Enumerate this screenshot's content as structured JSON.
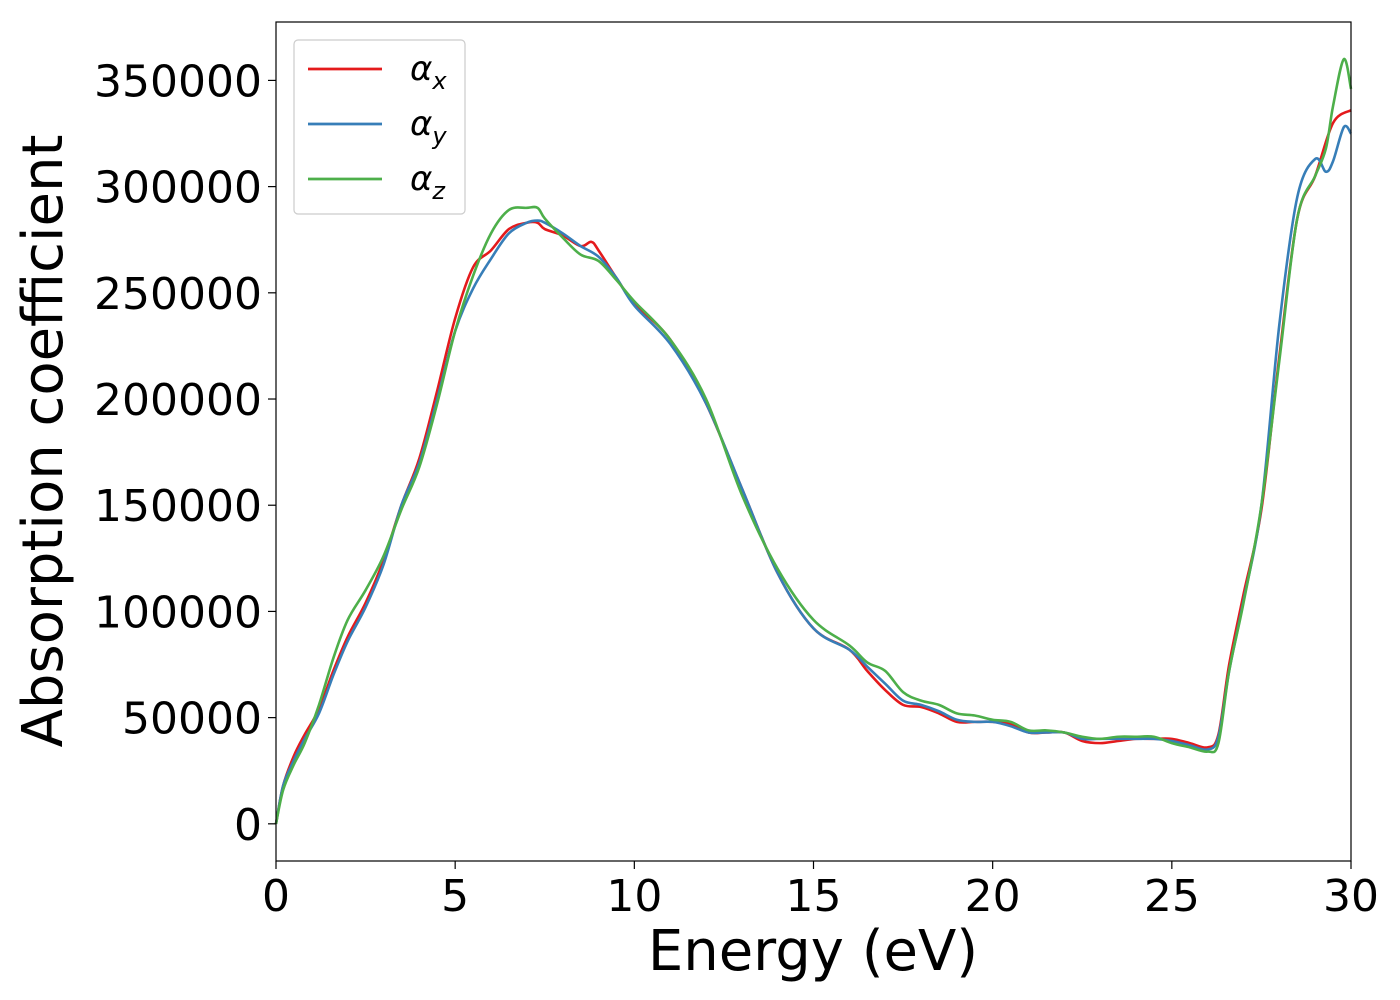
{
  "chart_data": {
    "type": "line",
    "xlabel": "Energy (eV)",
    "ylabel": "Absorption coefficient",
    "xlim": [
      0,
      30
    ],
    "ylim": [
      -17500,
      377500
    ],
    "xticks": [
      0,
      5,
      10,
      15,
      20,
      25,
      30
    ],
    "yticks": [
      0,
      50000,
      100000,
      150000,
      200000,
      250000,
      300000,
      350000
    ],
    "grid": false,
    "legend_position": "top-left",
    "series": [
      {
        "name": "α_x",
        "legend_main": "α",
        "legend_sub": "x",
        "color": "#e41a1c",
        "x": [
          0,
          0.2,
          0.5,
          0.8,
          1.2,
          1.6,
          2.0,
          2.5,
          3.0,
          3.5,
          4.0,
          4.5,
          5.0,
          5.5,
          6.0,
          6.5,
          7.0,
          7.3,
          7.5,
          8.0,
          8.5,
          8.8,
          9.0,
          9.5,
          10.0,
          11.0,
          12.0,
          13.0,
          14.0,
          15.0,
          16.0,
          16.5,
          17.0,
          17.5,
          18.0,
          18.5,
          19.0,
          19.5,
          20.0,
          20.5,
          21.0,
          21.5,
          22.0,
          22.5,
          23.0,
          23.5,
          24.0,
          24.5,
          25.0,
          25.5,
          26.0,
          26.3,
          26.6,
          27.0,
          27.5,
          28.0,
          28.5,
          29.0,
          29.5,
          30.0
        ],
        "y": [
          0,
          18000,
          32000,
          42000,
          54000,
          72000,
          88000,
          104000,
          124000,
          150000,
          172000,
          204000,
          238000,
          262000,
          270000,
          280000,
          283000,
          283000,
          280000,
          277000,
          272000,
          274000,
          270000,
          257000,
          245000,
          228000,
          198000,
          158000,
          118000,
          92000,
          82000,
          72000,
          63000,
          56000,
          55000,
          52000,
          48000,
          48000,
          48000,
          47000,
          43000,
          43000,
          43000,
          39000,
          38000,
          39000,
          40000,
          40000,
          40000,
          38000,
          36000,
          42000,
          75000,
          108000,
          148000,
          220000,
          285000,
          305000,
          330000,
          336000
        ]
      },
      {
        "name": "α_y",
        "legend_main": "α",
        "legend_sub": "y",
        "color": "#377eb8",
        "x": [
          0,
          0.2,
          0.5,
          0.8,
          1.2,
          1.6,
          2.0,
          2.5,
          3.0,
          3.5,
          4.0,
          4.5,
          5.0,
          5.5,
          6.0,
          6.5,
          7.0,
          7.3,
          7.5,
          8.0,
          8.5,
          9.0,
          9.5,
          10.0,
          11.0,
          12.0,
          13.0,
          14.0,
          15.0,
          16.0,
          16.5,
          17.0,
          17.5,
          18.0,
          18.5,
          19.0,
          19.5,
          20.0,
          20.5,
          21.0,
          21.5,
          22.0,
          22.5,
          23.0,
          23.5,
          24.0,
          24.5,
          25.0,
          25.5,
          26.0,
          26.3,
          26.6,
          27.0,
          27.5,
          28.0,
          28.5,
          29.0,
          29.3,
          29.5,
          29.8,
          30.0
        ],
        "y": [
          0,
          18000,
          30000,
          40000,
          52000,
          70000,
          86000,
          102000,
          122000,
          150000,
          170000,
          200000,
          232000,
          252000,
          266000,
          278000,
          283000,
          284000,
          283000,
          278000,
          272000,
          267000,
          257000,
          244000,
          226000,
          198000,
          158000,
          118000,
          92000,
          82000,
          74000,
          66000,
          58000,
          56000,
          53000,
          49000,
          48000,
          48000,
          46000,
          43000,
          43000,
          43000,
          40000,
          40000,
          40000,
          40000,
          40000,
          39000,
          37000,
          35000,
          41000,
          72000,
          105000,
          150000,
          235000,
          295000,
          313000,
          307000,
          312000,
          328000,
          325000
        ]
      },
      {
        "name": "α_z",
        "legend_main": "α",
        "legend_sub": "z",
        "color": "#4daf4a",
        "x": [
          0,
          0.2,
          0.5,
          0.8,
          1.2,
          1.6,
          2.0,
          2.5,
          3.0,
          3.5,
          4.0,
          4.5,
          5.0,
          5.5,
          6.0,
          6.5,
          7.0,
          7.3,
          7.5,
          8.0,
          8.5,
          9.0,
          9.5,
          10.0,
          11.0,
          12.0,
          13.0,
          14.0,
          15.0,
          16.0,
          16.5,
          17.0,
          17.5,
          18.0,
          18.5,
          19.0,
          19.5,
          20.0,
          20.5,
          21.0,
          21.5,
          22.0,
          22.5,
          23.0,
          23.5,
          24.0,
          24.5,
          25.0,
          25.5,
          26.0,
          26.3,
          26.6,
          27.0,
          27.5,
          28.0,
          28.5,
          29.0,
          29.3,
          29.5,
          29.8,
          30.0
        ],
        "y": [
          0,
          16000,
          28000,
          38000,
          56000,
          78000,
          96000,
          110000,
          126000,
          148000,
          168000,
          198000,
          232000,
          258000,
          278000,
          289000,
          290000,
          290000,
          285000,
          276000,
          268000,
          265000,
          256000,
          246000,
          228000,
          200000,
          155000,
          120000,
          96000,
          84000,
          76000,
          72000,
          62000,
          58000,
          56000,
          52000,
          51000,
          49000,
          48000,
          44000,
          44000,
          43000,
          41000,
          40000,
          41000,
          41000,
          41000,
          38000,
          36000,
          34000,
          38000,
          72000,
          104000,
          150000,
          218000,
          285000,
          305000,
          318000,
          338000,
          360000,
          346000
        ]
      }
    ]
  }
}
